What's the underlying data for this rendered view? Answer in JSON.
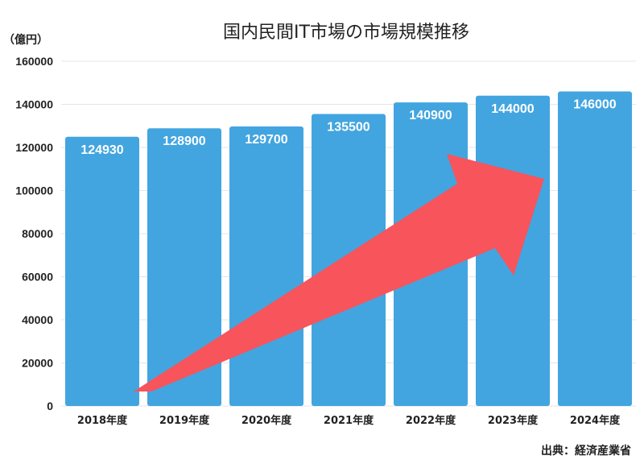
{
  "chart_data": {
    "type": "bar",
    "title": "国内民間IT市場の市場規模推移",
    "ylabel": "（億円）",
    "categories": [
      "2018年度",
      "2019年度",
      "2020年度",
      "2021年度",
      "2022年度",
      "2023年度",
      "2024年度"
    ],
    "values": [
      124930,
      128900,
      129700,
      135500,
      140900,
      144000,
      146000
    ],
    "data_labels": [
      "124930",
      "128900",
      "129700",
      "135500",
      "140900",
      "144000",
      "146000"
    ],
    "ylim": [
      0,
      160000
    ],
    "yticks": [
      "0",
      "20000",
      "40000",
      "60000",
      "80000",
      "100000",
      "120000",
      "140000",
      "160000"
    ],
    "grid": true,
    "bar_color": "#42a5e0",
    "arrow_color": "#f7545c",
    "source": "出典：経済産業省"
  }
}
